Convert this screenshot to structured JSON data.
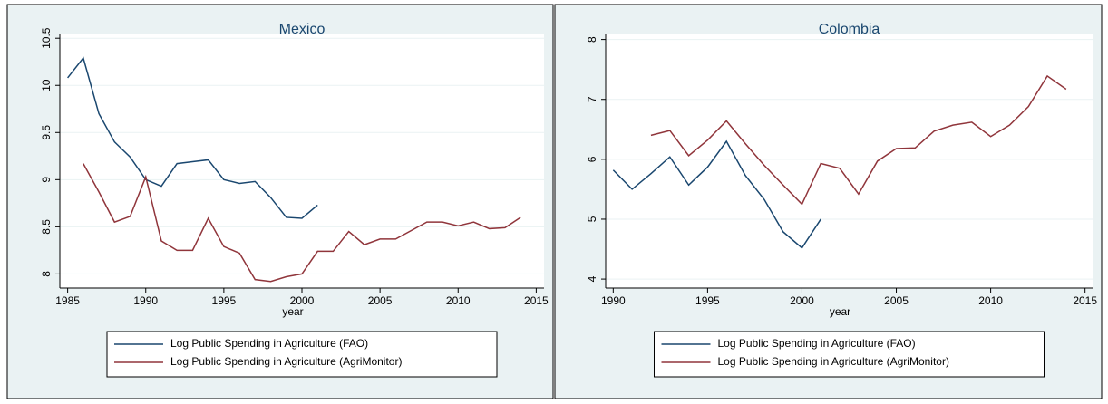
{
  "chart_data": [
    {
      "type": "line",
      "title": "Mexico",
      "xlabel": "year",
      "grid": true,
      "legend": "bottom",
      "x": [
        1985,
        1986,
        1987,
        1988,
        1989,
        1990,
        1991,
        1992,
        1993,
        1994,
        1995,
        1996,
        1997,
        1998,
        1999,
        2000,
        2001,
        2002,
        2003,
        2004,
        2005,
        2006,
        2007,
        2008,
        2009,
        2010,
        2011,
        2012,
        2013,
        2014
      ],
      "xlim": [
        1984.5,
        2015.5
      ],
      "xticks": [
        1985,
        1990,
        1995,
        2000,
        2005,
        2010,
        2015
      ],
      "ylim": [
        7.85,
        10.55
      ],
      "yticks": [
        8,
        8.5,
        9,
        9.5,
        10,
        10.5
      ],
      "series": [
        {
          "name": "Log Public Spending in Agriculture (FAO)",
          "color": "#1a476f",
          "values": [
            10.08,
            10.29,
            9.7,
            9.4,
            9.24,
            9.0,
            8.93,
            9.17,
            9.19,
            9.21,
            9.0,
            8.96,
            8.98,
            8.81,
            8.6,
            8.59,
            8.73,
            null,
            null,
            null,
            null,
            null,
            null,
            null,
            null,
            null,
            null,
            null,
            null,
            null
          ]
        },
        {
          "name": "Log Public Spending in Agriculture (AgriMonitor)",
          "color": "#90353b",
          "values": [
            null,
            9.17,
            8.87,
            8.55,
            8.61,
            9.03,
            8.35,
            8.25,
            8.25,
            8.59,
            8.29,
            8.22,
            7.94,
            7.92,
            7.97,
            8.0,
            8.24,
            8.24,
            8.45,
            8.31,
            8.37,
            8.37,
            8.46,
            8.55,
            8.55,
            8.51,
            8.55,
            8.48,
            8.49,
            8.6
          ]
        }
      ]
    },
    {
      "type": "line",
      "title": "Colombia",
      "xlabel": "year",
      "grid": true,
      "legend": "bottom",
      "x": [
        1990,
        1991,
        1992,
        1993,
        1994,
        1995,
        1996,
        1997,
        1998,
        1999,
        2000,
        2001,
        2002,
        2003,
        2004,
        2005,
        2006,
        2007,
        2008,
        2009,
        2010,
        2011,
        2012,
        2013,
        2014
      ],
      "xlim": [
        1989.6,
        2015.4
      ],
      "xticks": [
        1990,
        1995,
        2000,
        2005,
        2010,
        2015
      ],
      "ylim": [
        3.85,
        8.1
      ],
      "yticks": [
        4,
        5,
        6,
        7,
        8
      ],
      "series": [
        {
          "name": "Log Public Spending in Agriculture (FAO)",
          "color": "#1a476f",
          "values": [
            5.82,
            5.5,
            5.76,
            6.04,
            5.57,
            5.87,
            6.3,
            5.73,
            5.33,
            4.79,
            4.52,
            5.0,
            null,
            null,
            null,
            null,
            null,
            null,
            null,
            null,
            null,
            null,
            null,
            null,
            null
          ]
        },
        {
          "name": "Log Public Spending in Agriculture (AgriMonitor)",
          "color": "#90353b",
          "values": [
            null,
            null,
            6.4,
            6.48,
            6.06,
            6.32,
            6.64,
            6.26,
            5.9,
            5.57,
            5.25,
            5.93,
            5.85,
            5.42,
            5.97,
            6.18,
            6.19,
            6.47,
            6.57,
            6.62,
            6.38,
            6.57,
            6.88,
            7.39,
            7.17
          ]
        }
      ]
    }
  ]
}
